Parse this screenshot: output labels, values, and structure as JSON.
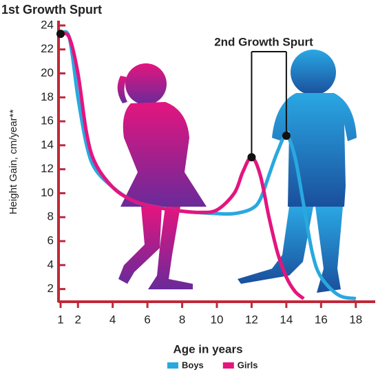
{
  "chart_data": {
    "type": "line",
    "title": "1st Growth Spurt",
    "annotation": "2nd Growth Spurt",
    "x_label": "Age in years",
    "y_label": "Height Gain, cm/year**",
    "xlim": [
      1,
      19
    ],
    "ylim": [
      1,
      24.4
    ],
    "xticks": [
      1,
      2,
      4,
      6,
      8,
      10,
      12,
      14,
      16,
      18
    ],
    "yticks": [
      2,
      4,
      6,
      8,
      10,
      12,
      14,
      16,
      18,
      20,
      22,
      24
    ],
    "series": [
      {
        "name": "Boys",
        "color": "#29a8df",
        "x": [
          1,
          1.5,
          2,
          2.5,
          3,
          4,
          5,
          6,
          8,
          10,
          11,
          12,
          12.5,
          13,
          13.5,
          14,
          14.5,
          15,
          15.5,
          16,
          17,
          18
        ],
        "values": [
          23.3,
          23,
          18,
          14,
          12,
          10.5,
          9.5,
          9,
          8.5,
          8.3,
          8.3,
          8.7,
          9.5,
          11.5,
          13.5,
          14.8,
          13,
          9,
          5,
          3,
          1.5,
          1.2
        ]
      },
      {
        "name": "Girls",
        "color": "#e3157f",
        "x": [
          1,
          1.5,
          2,
          2.5,
          3,
          4,
          5,
          6,
          7,
          8,
          9,
          10,
          11,
          11.5,
          12,
          12.5,
          13,
          13.5,
          14,
          14.5,
          15
        ],
        "values": [
          23.3,
          23,
          20,
          15,
          12.5,
          10.5,
          9.5,
          9,
          8.7,
          8.5,
          8.4,
          8.6,
          10,
          11.8,
          13,
          11.5,
          8,
          5,
          3,
          1.8,
          1.2
        ]
      }
    ]
  }
}
